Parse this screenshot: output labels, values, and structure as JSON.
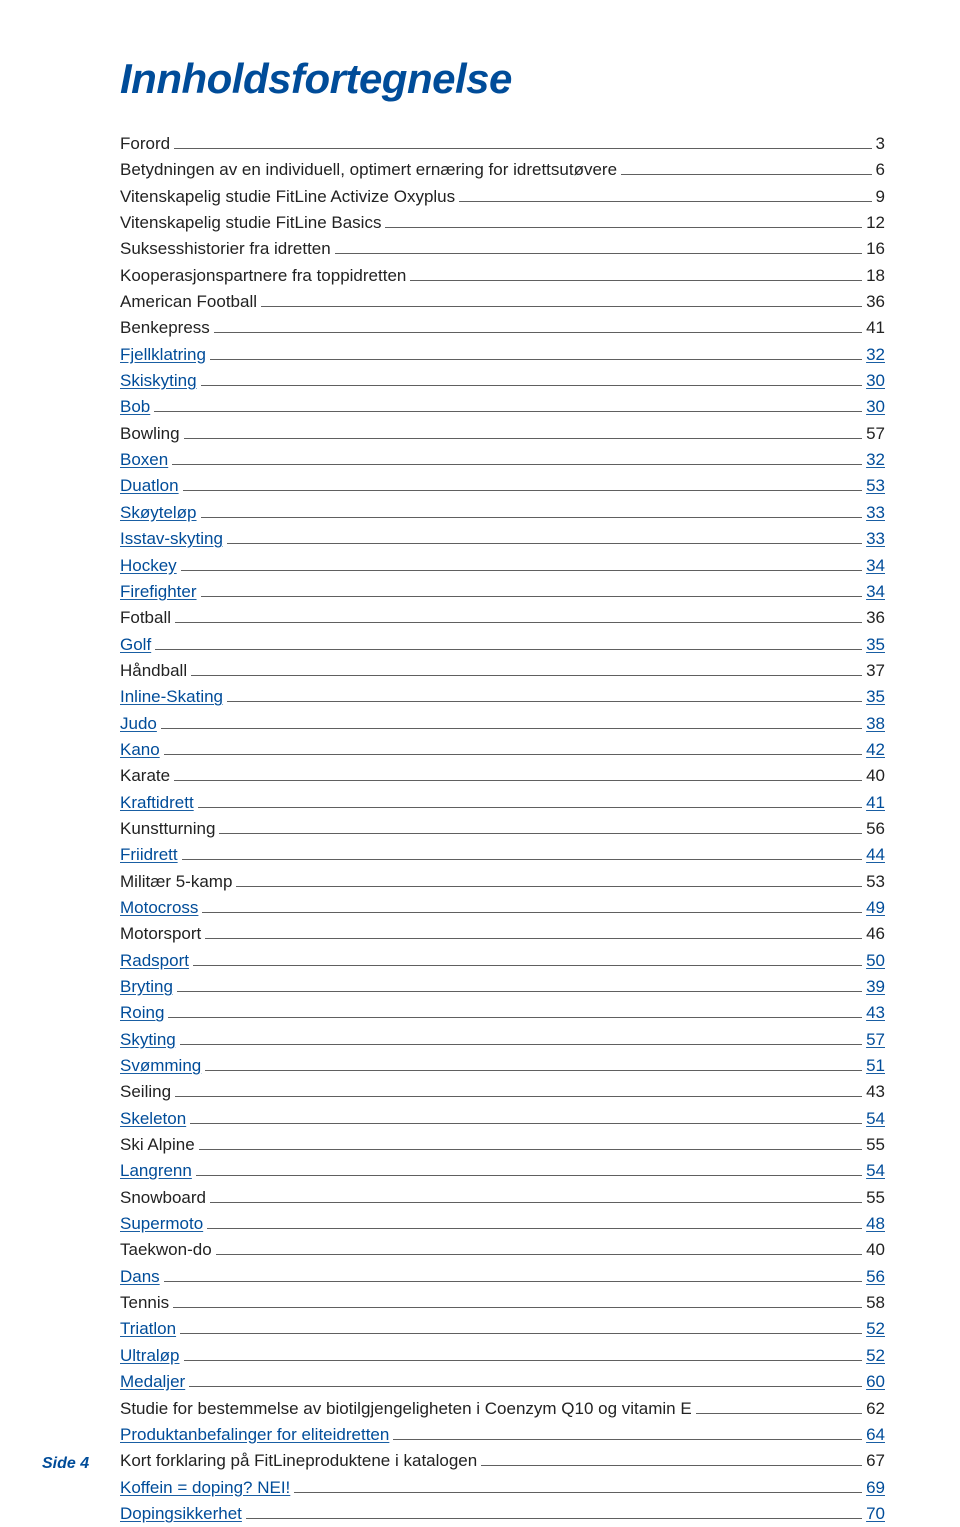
{
  "title": "Innholdsfortegnelse",
  "title_color": "#004c99",
  "title_fontsize": 42,
  "link_color": "#004c99",
  "plain_color": "#222222",
  "leader_color": "#606060",
  "background_color": "#ffffff",
  "body_fontsize": 17,
  "footer": "Side 4",
  "entries": [
    {
      "label": "Forord",
      "page": "3",
      "link": false
    },
    {
      "label": "Betydningen av en individuell, optimert ernæring for idrettsutøvere",
      "page": "6",
      "link": false
    },
    {
      "label": "Vitenskapelig studie FitLine Activize Oxyplus",
      "page": "9",
      "link": false
    },
    {
      "label": "Vitenskapelig studie FitLine Basics",
      "page": "12",
      "link": false
    },
    {
      "label": "Suksesshistorier fra idretten",
      "page": "16",
      "link": false
    },
    {
      "label": "Kooperasjonspartnere fra toppidretten",
      "page": "18",
      "link": false
    },
    {
      "label": "American Football",
      "page": "36",
      "link": false
    },
    {
      "label": "Benkepress",
      "page": "41",
      "link": false
    },
    {
      "label": "Fjellklatring",
      "page": "32",
      "link": true
    },
    {
      "label": "Skiskyting",
      "page": "30",
      "link": true
    },
    {
      "label": "Bob",
      "page": "30",
      "link": true
    },
    {
      "label": "Bowling",
      "page": "57",
      "link": false
    },
    {
      "label": "Boxen",
      "page": "32",
      "link": true
    },
    {
      "label": "Duatlon",
      "page": "53",
      "link": true
    },
    {
      "label": "Skøyteløp",
      "page": "33",
      "link": true
    },
    {
      "label": "Isstav-skyting",
      "page": "33",
      "link": true
    },
    {
      "label": "Hockey",
      "page": "34",
      "link": true
    },
    {
      "label": "Firefighter",
      "page": "34",
      "link": true
    },
    {
      "label": "Fotball",
      "page": "36",
      "link": false
    },
    {
      "label": "Golf",
      "page": "35",
      "link": true
    },
    {
      "label": "Håndball",
      "page": "37",
      "link": false
    },
    {
      "label": "Inline-Skating",
      "page": "35",
      "link": true
    },
    {
      "label": "Judo",
      "page": "38",
      "link": true
    },
    {
      "label": "Kano",
      "page": "42",
      "link": true
    },
    {
      "label": "Karate",
      "page": "40",
      "link": false
    },
    {
      "label": "Kraftidrett",
      "page": "41",
      "link": true
    },
    {
      "label": "Kunstturning",
      "page": "56",
      "link": false
    },
    {
      "label": "Friidrett",
      "page": "44",
      "link": true
    },
    {
      "label": "Militær 5-kamp",
      "page": "53",
      "link": false
    },
    {
      "label": "Motocross",
      "page": "49",
      "link": true
    },
    {
      "label": "Motorsport",
      "page": "46",
      "link": false
    },
    {
      "label": "Radsport",
      "page": "50",
      "link": true
    },
    {
      "label": "Bryting",
      "page": "39",
      "link": true
    },
    {
      "label": "Roing",
      "page": "43",
      "link": true
    },
    {
      "label": "Skyting",
      "page": "57",
      "link": true
    },
    {
      "label": "Svømming",
      "page": "51",
      "link": true
    },
    {
      "label": "Seiling",
      "page": "43",
      "link": false
    },
    {
      "label": "Skeleton",
      "page": "54",
      "link": true
    },
    {
      "label": "Ski Alpine",
      "page": "55",
      "link": false
    },
    {
      "label": "Langrenn",
      "page": "54",
      "link": true
    },
    {
      "label": "Snowboard",
      "page": "55",
      "link": false
    },
    {
      "label": "Supermoto",
      "page": "48",
      "link": true
    },
    {
      "label": "Taekwon-do",
      "page": "40",
      "link": false
    },
    {
      "label": "Dans",
      "page": "56",
      "link": true
    },
    {
      "label": "Tennis",
      "page": "58",
      "link": false
    },
    {
      "label": "Triatlon",
      "page": "52",
      "link": true
    },
    {
      "label": "Ultraløp",
      "page": "52",
      "link": true
    },
    {
      "label": "Medaljer",
      "page": "60",
      "link": true
    },
    {
      "label": "Studie for bestemmelse av biotilgjengeligheten i Coenzym Q10 og vitamin E",
      "page": "62",
      "link": false
    },
    {
      "label": "Produktanbefalinger for eliteidretten",
      "page": "64",
      "link": true
    },
    {
      "label": "Kort forklaring på FitLineproduktene i katalogen",
      "page": "67",
      "link": false
    },
    {
      "label": "Koffein = doping? NEI!",
      "page": "69",
      "link": true
    },
    {
      "label": "Dopingsikkerhet",
      "page": "70",
      "link": true
    }
  ]
}
